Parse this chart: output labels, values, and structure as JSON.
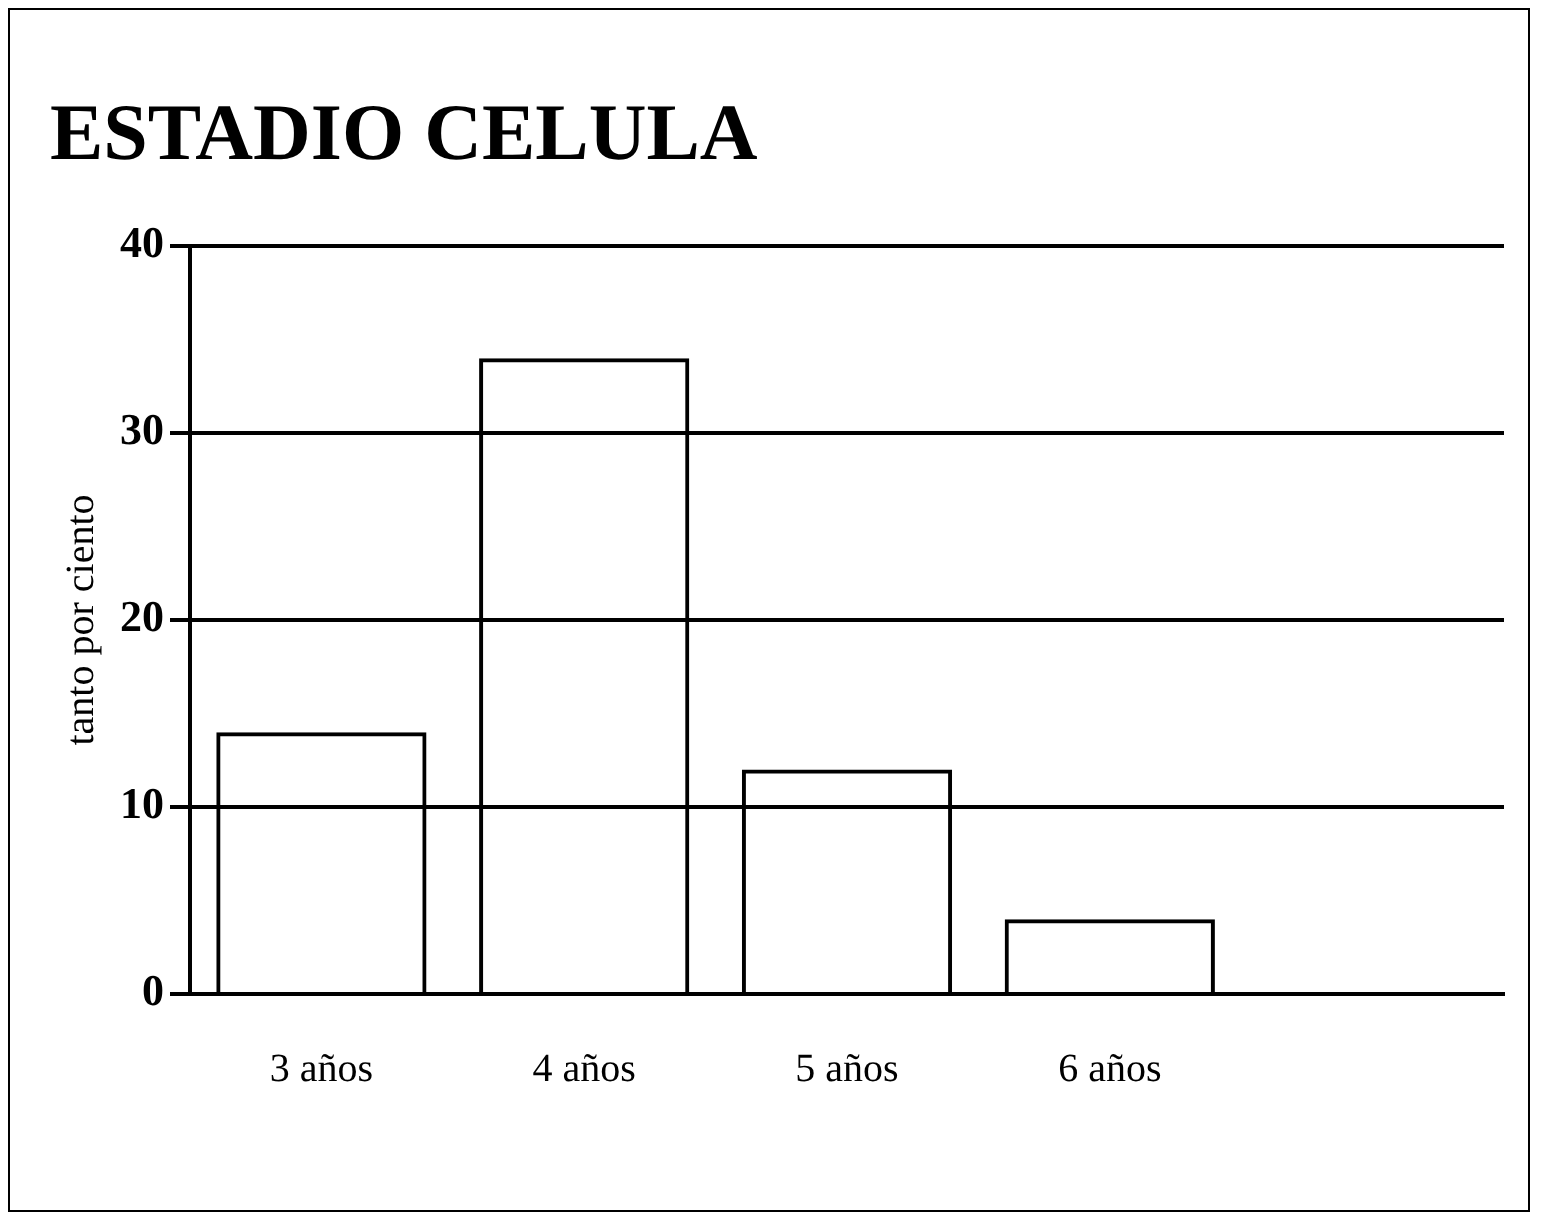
{
  "chart_data": {
    "type": "bar",
    "title": "ESTADIO CELULA",
    "ylabel": "tanto por ciento",
    "categories": [
      "3 años",
      "4 años",
      "5 años",
      "6 años",
      null
    ],
    "values": [
      14,
      34,
      12,
      4,
      null
    ],
    "color": "#000000",
    "ylim": [
      0,
      40
    ],
    "yticks": [
      0,
      10,
      20,
      30,
      40
    ],
    "grid": "y",
    "legend": false
  }
}
